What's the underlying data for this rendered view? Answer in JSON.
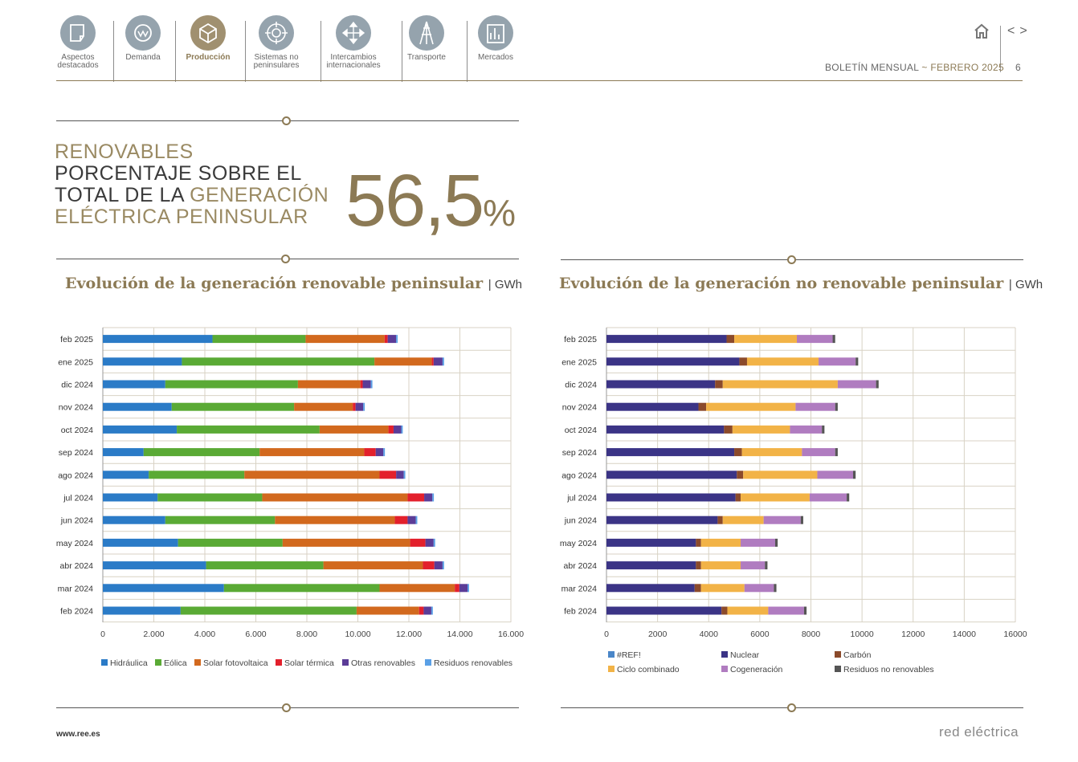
{
  "nav": {
    "items": [
      {
        "label1": "Aspectos",
        "label2": "destacados",
        "icon": "document-icon",
        "active": false
      },
      {
        "label1": "Demanda",
        "label2": "",
        "icon": "gauge-icon",
        "active": false
      },
      {
        "label1": "Producción",
        "label2": "",
        "icon": "cube-icon",
        "active": true
      },
      {
        "label1": "Sistemas no",
        "label2": "peninsulares",
        "icon": "target-icon",
        "active": false
      },
      {
        "label1": "Intercambios",
        "label2": "internacionales",
        "icon": "arrows-icon",
        "active": false
      },
      {
        "label1": "Transporte",
        "label2": "",
        "icon": "tower-icon",
        "active": false
      },
      {
        "label1": "Mercados",
        "label2": "",
        "icon": "bars-icon",
        "active": false
      }
    ]
  },
  "header": {
    "bulletin": "BOLETÍN MENSUAL",
    "separator": "~",
    "month": "FEBRERO 2025",
    "page": "6",
    "prev": "<",
    "next": ">"
  },
  "headline": {
    "line1": "RENOVABLES",
    "line2": "PORCENTAJE SOBRE EL",
    "line3a": "TOTAL DE LA ",
    "line3b": "GENERACIÓN",
    "line4": "ELÉCTRICA PENINSULAR",
    "value": "56,5",
    "pct": "%"
  },
  "footer": {
    "url": "www.ree.es",
    "logo": "red eléctrica"
  },
  "chart_data": [
    {
      "type": "bar",
      "orientation": "horizontal",
      "stacked": true,
      "title": "Evolución de la generación renovable peninsular",
      "unit": "GWh",
      "categories": [
        "feb 2025",
        "ene 2025",
        "dic 2024",
        "nov 2024",
        "oct 2024",
        "sep 2024",
        "ago 2024",
        "jul 2024",
        "jun 2024",
        "may 2024",
        "abr 2024",
        "mar 2024",
        "feb 2024"
      ],
      "xlim": [
        0,
        16000
      ],
      "xticks": [
        "0",
        "2.000",
        "4.000",
        "6.000",
        "8.000",
        "10.000",
        "12.000",
        "14.000",
        "16.000"
      ],
      "series": [
        {
          "name": "Hidráulica",
          "color": "#2b7bc7",
          "values": [
            4300,
            3100,
            2450,
            2700,
            2900,
            1600,
            1800,
            2150,
            2450,
            2950,
            4050,
            4750,
            3050
          ]
        },
        {
          "name": "Eólica",
          "color": "#5aaa35",
          "values": [
            3650,
            7550,
            5200,
            4800,
            5600,
            4550,
            3750,
            4100,
            4300,
            4100,
            4600,
            6100,
            6900
          ]
        },
        {
          "name": "Solar fotovoltaica",
          "color": "#d2691e",
          "values": [
            3100,
            2250,
            2450,
            2300,
            2700,
            4100,
            5300,
            5700,
            4700,
            5000,
            3900,
            2950,
            2450
          ]
        },
        {
          "name": "Solar térmica",
          "color": "#e3202c",
          "values": [
            120,
            70,
            90,
            110,
            200,
            450,
            650,
            650,
            500,
            600,
            450,
            180,
            180
          ]
        },
        {
          "name": "Otras renovables",
          "color": "#5b3c97",
          "values": [
            330,
            350,
            320,
            300,
            300,
            300,
            300,
            320,
            320,
            320,
            320,
            320,
            300
          ]
        },
        {
          "name": "Residuos renovables",
          "color": "#5aa0e6",
          "values": [
            60,
            60,
            60,
            60,
            60,
            60,
            60,
            60,
            60,
            60,
            60,
            60,
            60
          ]
        }
      ]
    },
    {
      "type": "bar",
      "orientation": "horizontal",
      "stacked": true,
      "title": "Evolución de la generación no renovable peninsular",
      "unit": "GWh",
      "categories": [
        "feb 2025",
        "ene 2025",
        "dic 2024",
        "nov 2024",
        "oct 2024",
        "sep 2024",
        "ago 2024",
        "jul 2024",
        "jun 2024",
        "may 2024",
        "abr 2024",
        "mar 2024",
        "feb 2024"
      ],
      "xlim": [
        0,
        16000
      ],
      "xticks": [
        "0",
        "2000",
        "4000",
        "6000",
        "8000",
        "10000",
        "12000",
        "14000",
        "16000"
      ],
      "series": [
        {
          "name": "#REF!",
          "color": "#4a86c8",
          "values": [
            0,
            0,
            0,
            0,
            0,
            0,
            0,
            0,
            0,
            0,
            0,
            0,
            0
          ]
        },
        {
          "name": "Nuclear",
          "color": "#3b3486",
          "values": [
            4700,
            5200,
            4250,
            3600,
            4600,
            5000,
            5100,
            5050,
            4350,
            3500,
            3500,
            3450,
            4500
          ]
        },
        {
          "name": "Carbón",
          "color": "#8b4a2b",
          "values": [
            300,
            300,
            300,
            300,
            330,
            300,
            250,
            200,
            200,
            200,
            200,
            250,
            230
          ]
        },
        {
          "name": "Ciclo combinado",
          "color": "#f2b347",
          "values": [
            2450,
            2800,
            4500,
            3500,
            2250,
            2350,
            2900,
            2700,
            1600,
            1550,
            1550,
            1700,
            1600
          ]
        },
        {
          "name": "Cogeneración",
          "color": "#b07cc0",
          "values": [
            1400,
            1450,
            1500,
            1550,
            1250,
            1300,
            1400,
            1450,
            1450,
            1350,
            950,
            1150,
            1400
          ]
        },
        {
          "name": "Residuos no renovables",
          "color": "#555555",
          "values": [
            100,
            100,
            100,
            100,
            100,
            100,
            100,
            100,
            100,
            100,
            100,
            100,
            100
          ]
        }
      ]
    }
  ]
}
